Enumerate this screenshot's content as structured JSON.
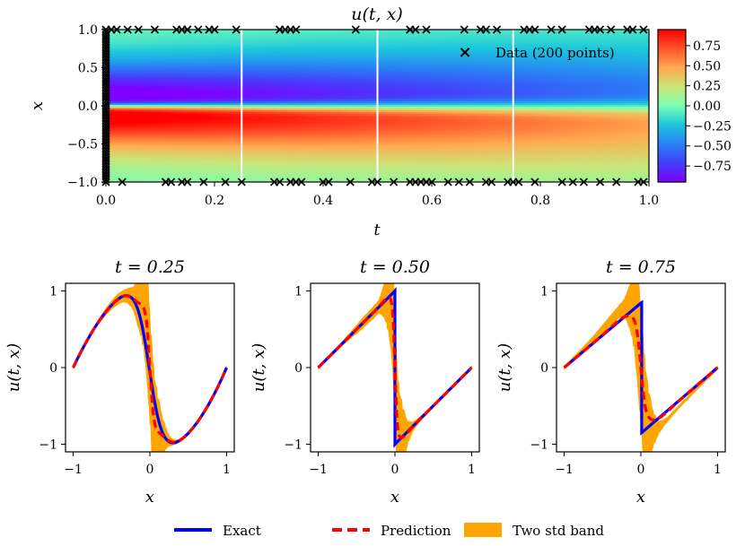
{
  "chart_data": [
    {
      "type": "heatmap",
      "title": "u(t, x)",
      "xlabel": "t",
      "ylabel": "x",
      "xlim": [
        0.0,
        1.0
      ],
      "ylim": [
        -1.0,
        1.0
      ],
      "xticks": [
        "0.0",
        "0.2",
        "0.4",
        "0.6",
        "0.8",
        "1.0"
      ],
      "yticks": [
        "1.0",
        "0.5",
        "0.0",
        "-0.5",
        "-1.0"
      ],
      "colorbar": {
        "range": [
          -0.95,
          0.95
        ],
        "ticks": [
          "0.75",
          "0.50",
          "0.25",
          "0.00",
          "-0.25",
          "-0.50",
          "-0.75"
        ],
        "tick_values": [
          0.75,
          0.5,
          0.25,
          0.0,
          -0.25,
          -0.5,
          -0.75
        ]
      },
      "slice_lines_t": [
        0.25,
        0.5,
        0.75
      ],
      "legend": {
        "marker": "×",
        "label": "Data (200 points)",
        "placement": "top-right"
      },
      "data_points": {
        "top_boundary_t": [
          0.01,
          0.02,
          0.04,
          0.06,
          0.09,
          0.13,
          0.14,
          0.15,
          0.15,
          0.17,
          0.19,
          0.2,
          0.24,
          0.32,
          0.32,
          0.33,
          0.34,
          0.35,
          0.46,
          0.56,
          0.56,
          0.57,
          0.59,
          0.66,
          0.69,
          0.7,
          0.72,
          0.77,
          0.78,
          0.79,
          0.82,
          0.84,
          0.89,
          0.9,
          0.91,
          0.93,
          0.96,
          0.97,
          0.99
        ],
        "bottom_boundary_t": [
          0.03,
          0.11,
          0.11,
          0.12,
          0.14,
          0.15,
          0.18,
          0.22,
          0.25,
          0.31,
          0.32,
          0.34,
          0.35,
          0.36,
          0.4,
          0.41,
          0.45,
          0.49,
          0.5,
          0.53,
          0.56,
          0.57,
          0.58,
          0.59,
          0.6,
          0.63,
          0.65,
          0.67,
          0.7,
          0.71,
          0.74,
          0.75,
          0.76,
          0.79,
          0.84,
          0.86,
          0.88,
          0.91,
          0.94,
          0.98,
          0.99
        ]
      }
    },
    {
      "type": "line",
      "title": "t = 0.25",
      "t": 0.25,
      "xlabel": "x",
      "ylabel": "u(t, x)",
      "xlim": [
        -1.1,
        1.1
      ],
      "ylim": [
        -1.1,
        1.1
      ],
      "xticks": [
        "−1",
        "0",
        "1"
      ],
      "yticks": [
        "1",
        "0",
        "−1"
      ],
      "series": [
        {
          "name": "Exact",
          "color": "#0000ff"
        },
        {
          "name": "Prediction",
          "color": "#ff0000"
        },
        {
          "name": "Two std band",
          "color": "#ffa500"
        }
      ]
    },
    {
      "type": "line",
      "title": "t = 0.50",
      "t": 0.5,
      "xlabel": "x",
      "ylabel": "u(t, x)",
      "xlim": [
        -1.1,
        1.1
      ],
      "ylim": [
        -1.1,
        1.1
      ],
      "xticks": [
        "−1",
        "0",
        "1"
      ],
      "yticks": [
        "1",
        "0",
        "−1"
      ],
      "series": [
        {
          "name": "Exact",
          "color": "#0000ff"
        },
        {
          "name": "Prediction",
          "color": "#ff0000"
        },
        {
          "name": "Two std band",
          "color": "#ffa500"
        }
      ]
    },
    {
      "type": "line",
      "title": "t = 0.75",
      "t": 0.75,
      "xlabel": "x",
      "ylabel": "u(t, x)",
      "xlim": [
        -1.1,
        1.1
      ],
      "ylim": [
        -1.1,
        1.1
      ],
      "xticks": [
        "−1",
        "0",
        "1"
      ],
      "yticks": [
        "1",
        "0",
        "−1"
      ],
      "series": [
        {
          "name": "Exact",
          "color": "#0000ff"
        },
        {
          "name": "Prediction",
          "color": "#ff0000"
        },
        {
          "name": "Two std band",
          "color": "#ffa500"
        }
      ]
    }
  ],
  "legend": {
    "items": [
      {
        "label": "Exact",
        "color": "#0000ff",
        "style": "solid"
      },
      {
        "label": "Prediction",
        "color": "#ff0000",
        "style": "dashed"
      },
      {
        "label": "Two std band",
        "color": "#ffa500",
        "style": "patch"
      }
    ]
  }
}
